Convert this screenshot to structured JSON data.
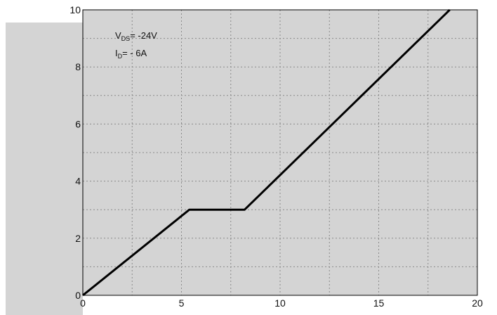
{
  "colors": {
    "plot_background": "#d4d4d4",
    "grid": "#8a8a8a",
    "line": "#000000"
  },
  "annotations": [
    {
      "main": "V",
      "sub": "DS",
      "rest": "= -24V"
    },
    {
      "main": "I",
      "sub": "D",
      "rest": "= - 6A"
    }
  ],
  "chart_data": {
    "type": "line",
    "title": "",
    "xlabel": "",
    "ylabel": "",
    "xlim": [
      0,
      20
    ],
    "ylim": [
      0,
      10
    ],
    "xticks": [
      0,
      5,
      10,
      15,
      20
    ],
    "yticks": [
      0,
      2,
      4,
      6,
      8,
      10
    ],
    "x_tick_labels": [
      "0",
      "5",
      "10",
      "15",
      "20"
    ],
    "y_tick_labels": [
      "0",
      "2",
      "4",
      "6",
      "8",
      "10"
    ],
    "grid": true,
    "series": [
      {
        "x": [
          0,
          5.4,
          8.2,
          18.6
        ],
        "y": [
          0,
          3.0,
          3.0,
          10.0
        ]
      }
    ]
  }
}
